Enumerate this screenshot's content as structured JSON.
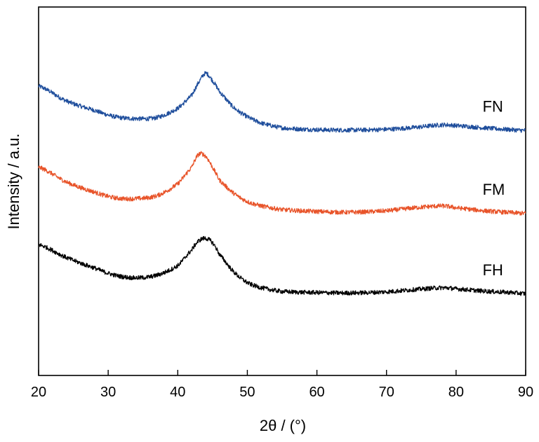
{
  "chart_data": {
    "type": "line",
    "xlabel": "2θ / (°)",
    "ylabel": "Intensity / a.u.",
    "xlim": [
      20,
      90
    ],
    "ylim": [
      0,
      10
    ],
    "xticks": [
      "20",
      "30",
      "40",
      "50",
      "60",
      "70",
      "80",
      "90"
    ],
    "yticks_shown": false,
    "grid": false,
    "x": [
      20,
      24,
      28,
      31,
      34,
      37,
      40,
      42,
      43,
      44,
      45,
      46,
      48,
      50,
      52,
      55,
      60,
      65,
      70,
      74,
      78,
      80,
      84,
      88,
      90
    ],
    "series": [
      {
        "name": "FN",
        "color": "#1f4e9c",
        "values": [
          7.85,
          7.45,
          7.2,
          7.02,
          6.97,
          7.0,
          7.25,
          7.6,
          7.95,
          8.2,
          8.0,
          7.7,
          7.28,
          7.02,
          6.85,
          6.72,
          6.67,
          6.66,
          6.68,
          6.73,
          6.8,
          6.78,
          6.72,
          6.67,
          6.65
        ]
      },
      {
        "name": "FM",
        "color": "#e8542a",
        "values": [
          5.65,
          5.25,
          4.98,
          4.82,
          4.8,
          4.88,
          5.2,
          5.65,
          6.0,
          5.95,
          5.65,
          5.3,
          4.95,
          4.72,
          4.6,
          4.5,
          4.45,
          4.43,
          4.47,
          4.55,
          4.6,
          4.55,
          4.47,
          4.42,
          4.4
        ]
      },
      {
        "name": "FH",
        "color": "#000000",
        "values": [
          3.55,
          3.2,
          2.92,
          2.72,
          2.65,
          2.72,
          2.98,
          3.4,
          3.65,
          3.72,
          3.6,
          3.28,
          2.82,
          2.52,
          2.38,
          2.28,
          2.25,
          2.24,
          2.27,
          2.33,
          2.38,
          2.35,
          2.29,
          2.25,
          2.22
        ]
      }
    ]
  }
}
